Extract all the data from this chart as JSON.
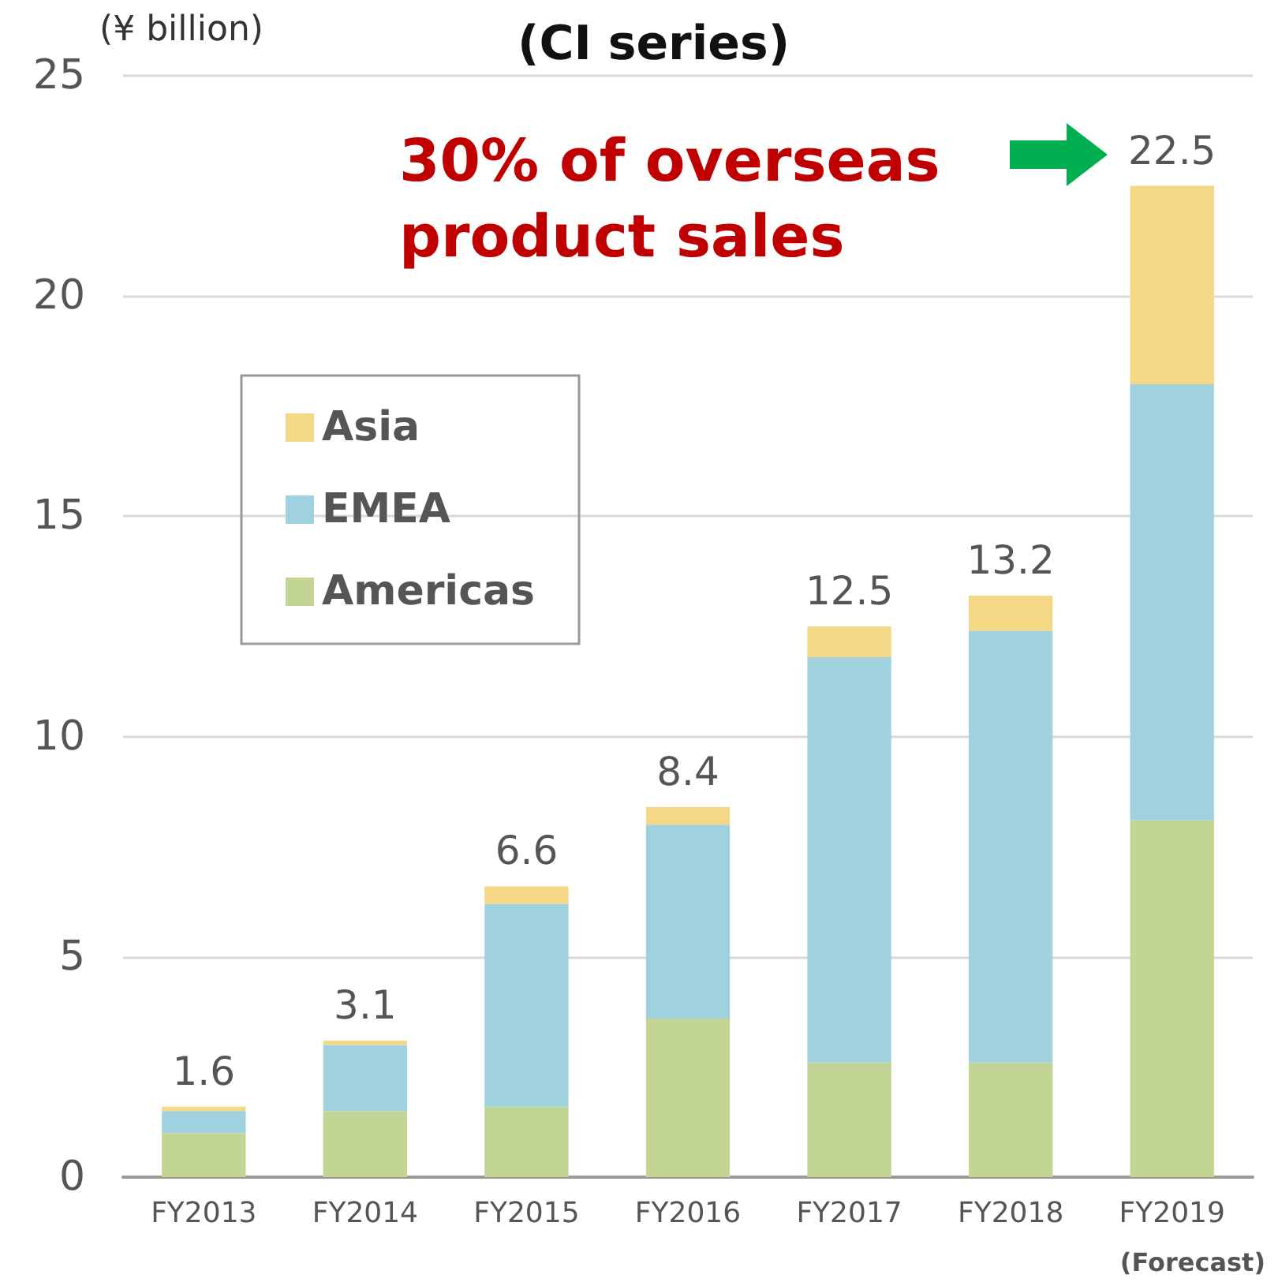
{
  "chart_data": {
    "type": "bar",
    "title": "(CI series)",
    "ylabel": "(¥ billion)",
    "stacked": true,
    "categories": [
      "FY2013",
      "FY2014",
      "FY2015",
      "FY2016",
      "FY2017",
      "FY2018",
      "FY2019"
    ],
    "series": [
      {
        "name": "Americas",
        "color": "#c3d594",
        "values": [
          1.0,
          1.5,
          1.6,
          3.6,
          2.6,
          2.6,
          8.1
        ]
      },
      {
        "name": "EMEA",
        "color": "#9fd1de",
        "values": [
          0.5,
          1.5,
          4.6,
          4.4,
          9.2,
          9.8,
          9.9
        ]
      },
      {
        "name": "Asia",
        "color": "#f5d885",
        "values": [
          0.1,
          0.1,
          0.4,
          0.4,
          0.7,
          0.8,
          4.5
        ]
      }
    ],
    "totals": [
      "1.6",
      "3.1",
      "6.6",
      "8.4",
      "12.5",
      "13.2",
      "22.5"
    ],
    "ylim": [
      0,
      25
    ],
    "yticks": [
      0,
      5,
      10,
      15,
      20,
      25
    ],
    "grid": "y",
    "legend": "top left",
    "annotations": [
      "30% of overseas product sales",
      "(Forecast)"
    ]
  }
}
